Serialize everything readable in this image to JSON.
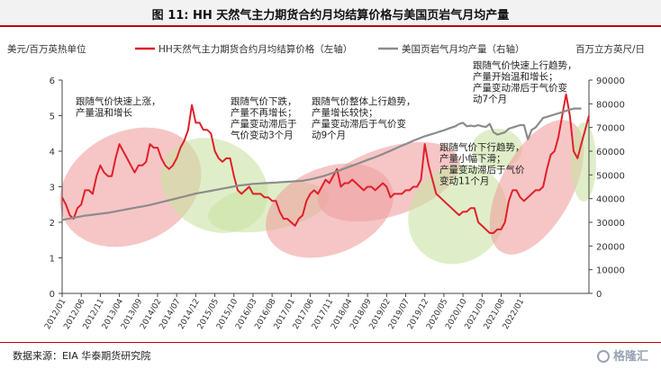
{
  "title": "图 11: HH 天然气主力期货合约月均结算价格与美国页岩气月均产量",
  "source": "数据来源：EIA 华泰期货研究院",
  "watermark": "格隆汇",
  "chart_data": {
    "type": "line",
    "left_axis_label": "美元/百万英热单位",
    "right_axis_label": "百万立方英尺/日",
    "ylim_left": [
      0,
      6
    ],
    "ylim_right": [
      0,
      90000
    ],
    "left_ticks": [
      "0",
      "1",
      "2",
      "3",
      "4",
      "5",
      "6"
    ],
    "right_ticks": [
      "0",
      "10000",
      "20000",
      "30000",
      "40000",
      "50000",
      "60000",
      "70000",
      "80000",
      "90000"
    ],
    "x_ticks": [
      "2012/01",
      "2012/06",
      "2012/11",
      "2013/04",
      "2013/09",
      "2014/02",
      "2014/07",
      "2014/12",
      "2015/05",
      "2015/10",
      "2016/03",
      "2016/08",
      "2017/01",
      "2017/06",
      "2017/11",
      "2018/04",
      "2018/09",
      "2019/02",
      "2019/07",
      "2019/12",
      "2020/05",
      "2020/10",
      "2021/03",
      "2021/08",
      "2022/01"
    ],
    "legend_position": "top",
    "grid": false,
    "series": [
      {
        "name": "HH天然气主力期货合约月均结算价格（左轴）",
        "axis": "left",
        "color": "#e0202a",
        "start": "2012/01",
        "values": [
          2.7,
          2.5,
          2.2,
          2.1,
          2.4,
          2.5,
          2.9,
          2.9,
          2.8,
          3.3,
          3.6,
          3.4,
          3.3,
          3.3,
          3.8,
          4.2,
          4.0,
          3.8,
          3.6,
          3.4,
          3.6,
          3.6,
          3.7,
          4.2,
          4.1,
          4.1,
          3.8,
          3.6,
          3.5,
          3.6,
          3.8,
          4.1,
          4.3,
          4.6,
          5.3,
          4.8,
          4.8,
          4.6,
          4.6,
          4.5,
          4.0,
          3.8,
          3.7,
          3.8,
          3.8,
          3.3,
          2.9,
          2.8,
          2.9,
          3.0,
          2.8,
          2.8,
          2.8,
          2.7,
          2.7,
          2.6,
          2.6,
          2.3,
          2.1,
          2.1,
          2.0,
          1.9,
          2.1,
          2.2,
          2.6,
          2.8,
          2.9,
          2.8,
          3.0,
          3.2,
          3.1,
          3.3,
          3.5,
          3.0,
          3.1,
          3.1,
          3.2,
          3.1,
          3.0,
          2.9,
          3.0,
          3.0,
          2.9,
          3.0,
          3.1,
          3.0,
          2.7,
          2.8,
          2.8,
          2.8,
          2.9,
          2.9,
          3.0,
          3.0,
          3.2,
          4.2,
          3.6,
          3.2,
          2.8,
          2.7,
          2.6,
          2.5,
          2.4,
          2.3,
          2.2,
          2.3,
          2.3,
          2.4,
          2.4,
          2.0,
          1.9,
          1.8,
          1.7,
          1.7,
          1.8,
          1.8,
          2.0,
          2.6,
          2.9,
          2.9,
          2.7,
          2.6,
          2.7,
          2.8,
          2.9,
          2.9,
          3.0,
          3.5,
          3.9,
          4.0,
          4.4,
          5.0,
          5.6,
          5.0,
          4.0,
          3.8,
          4.2,
          4.6,
          5.0
        ]
      },
      {
        "name": "美国页岩气月均产量（右轴）",
        "axis": "right",
        "color": "#8c8c8c",
        "start": "2012/01",
        "values": [
          31000,
          31300,
          31600,
          31900,
          32200,
          32500,
          32800,
          33000,
          33200,
          33400,
          33600,
          33800,
          34000,
          34300,
          34600,
          34900,
          35200,
          35500,
          35800,
          36100,
          36400,
          36700,
          37000,
          37300,
          37700,
          38100,
          38500,
          38900,
          39300,
          39700,
          40100,
          40500,
          40900,
          41300,
          41700,
          42100,
          42400,
          42700,
          43000,
          43300,
          43600,
          43900,
          44200,
          44500,
          44800,
          45100,
          45400,
          45600,
          45800,
          46000,
          46200,
          46300,
          46400,
          46500,
          46600,
          46700,
          46800,
          46900,
          47000,
          47100,
          47200,
          47300,
          47400,
          47500,
          47800,
          48100,
          48500,
          48900,
          49300,
          49800,
          50300,
          50900,
          51500,
          52100,
          52700,
          53300,
          53900,
          54500,
          55100,
          55700,
          56300,
          56900,
          57500,
          58100,
          58800,
          59500,
          60200,
          60900,
          61600,
          62300,
          63000,
          63700,
          64400,
          65100,
          65700,
          66300,
          66800,
          67300,
          67800,
          68300,
          68800,
          69400,
          70000,
          70500,
          71500,
          72000,
          70500,
          70800,
          70500,
          71000,
          70500,
          70200,
          71500,
          68000,
          67000,
          67500,
          68000,
          69500,
          70000,
          70500,
          71000,
          71000,
          65000,
          69000,
          70000,
          72000,
          74000,
          74500,
          75000,
          75500,
          76000,
          76500,
          77000,
          77500,
          78000,
          78000,
          78000
        ]
      }
    ],
    "annotations": [
      "跟随气价快速上涨，\n产量温和增长",
      "跟随气价下跌，\n产量不再增长；\n产量变动滞后于\n气价变动3个月",
      "跟随气价整体上行趋势，\n产量增长较快；\n产量变动滞后于气价变\n动9个月",
      "跟随气价下行趋势，\n产量小幅下滑；\n产量变动滞后于气价\n变动11个月",
      "跟随气价快速上行趋势，\n产量开始温和增长；\n产量变动滞后于气价变\n动7个月"
    ]
  }
}
